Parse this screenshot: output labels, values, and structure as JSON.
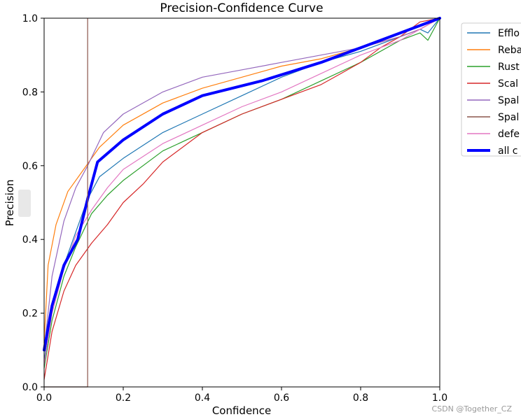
{
  "chart_data": {
    "type": "line",
    "title": "Precision-Confidence Curve",
    "xlabel": "Confidence",
    "ylabel": "Precision",
    "xlim": [
      0,
      1
    ],
    "ylim": [
      0,
      1
    ],
    "x_ticks": [
      "0.0",
      "0.2",
      "0.4",
      "0.6",
      "0.8",
      "1.0"
    ],
    "y_ticks": [
      "0.0",
      "0.2",
      "0.4",
      "0.6",
      "0.8",
      "1.0"
    ],
    "legend_position": "outside-top-right",
    "vertical_marker": {
      "x": 0.11,
      "color": "#8c564b"
    },
    "series": [
      {
        "name": "Efflo",
        "color": "#1f77b4",
        "width": 1.2,
        "points": [
          [
            0,
            0.07
          ],
          [
            0.02,
            0.22
          ],
          [
            0.05,
            0.33
          ],
          [
            0.08,
            0.42
          ],
          [
            0.11,
            0.51
          ],
          [
            0.14,
            0.57
          ],
          [
            0.2,
            0.62
          ],
          [
            0.3,
            0.69
          ],
          [
            0.4,
            0.74
          ],
          [
            0.5,
            0.79
          ],
          [
            0.6,
            0.84
          ],
          [
            0.7,
            0.88
          ],
          [
            0.8,
            0.91
          ],
          [
            0.9,
            0.95
          ],
          [
            0.95,
            0.97
          ],
          [
            0.97,
            0.96
          ],
          [
            1,
            1
          ]
        ]
      },
      {
        "name": "Reba",
        "color": "#ff7f0e",
        "width": 1.2,
        "points": [
          [
            0,
            0.12
          ],
          [
            0.01,
            0.33
          ],
          [
            0.03,
            0.44
          ],
          [
            0.06,
            0.53
          ],
          [
            0.1,
            0.59
          ],
          [
            0.14,
            0.65
          ],
          [
            0.2,
            0.71
          ],
          [
            0.3,
            0.77
          ],
          [
            0.4,
            0.81
          ],
          [
            0.5,
            0.84
          ],
          [
            0.6,
            0.87
          ],
          [
            0.7,
            0.89
          ],
          [
            0.8,
            0.92
          ],
          [
            0.9,
            0.95
          ],
          [
            0.95,
            0.97
          ],
          [
            1,
            1
          ]
        ]
      },
      {
        "name": "Rust",
        "color": "#2ca02c",
        "width": 1.2,
        "points": [
          [
            0,
            0.05
          ],
          [
            0.02,
            0.18
          ],
          [
            0.05,
            0.3
          ],
          [
            0.08,
            0.38
          ],
          [
            0.12,
            0.47
          ],
          [
            0.16,
            0.52
          ],
          [
            0.2,
            0.56
          ],
          [
            0.3,
            0.64
          ],
          [
            0.4,
            0.69
          ],
          [
            0.5,
            0.74
          ],
          [
            0.6,
            0.78
          ],
          [
            0.7,
            0.83
          ],
          [
            0.8,
            0.88
          ],
          [
            0.9,
            0.94
          ],
          [
            0.95,
            0.96
          ],
          [
            0.97,
            0.94
          ],
          [
            1,
            1
          ]
        ]
      },
      {
        "name": "Scal",
        "color": "#d62728",
        "width": 1.2,
        "points": [
          [
            0,
            0.02
          ],
          [
            0.02,
            0.15
          ],
          [
            0.05,
            0.26
          ],
          [
            0.08,
            0.33
          ],
          [
            0.12,
            0.39
          ],
          [
            0.16,
            0.44
          ],
          [
            0.2,
            0.5
          ],
          [
            0.25,
            0.55
          ],
          [
            0.3,
            0.61
          ],
          [
            0.4,
            0.69
          ],
          [
            0.5,
            0.74
          ],
          [
            0.6,
            0.78
          ],
          [
            0.7,
            0.82
          ],
          [
            0.75,
            0.85
          ],
          [
            0.8,
            0.88
          ],
          [
            0.85,
            0.92
          ],
          [
            0.9,
            0.95
          ],
          [
            0.95,
            0.99
          ],
          [
            1,
            1
          ]
        ]
      },
      {
        "name": "Spal",
        "color": "#9467bd",
        "width": 1.2,
        "points": [
          [
            0,
            0.1
          ],
          [
            0.02,
            0.3
          ],
          [
            0.05,
            0.45
          ],
          [
            0.08,
            0.54
          ],
          [
            0.11,
            0.6
          ],
          [
            0.15,
            0.69
          ],
          [
            0.2,
            0.74
          ],
          [
            0.3,
            0.8
          ],
          [
            0.4,
            0.84
          ],
          [
            0.5,
            0.86
          ],
          [
            0.6,
            0.88
          ],
          [
            0.7,
            0.9
          ],
          [
            0.8,
            0.92
          ],
          [
            0.9,
            0.95
          ],
          [
            0.95,
            0.97
          ],
          [
            1,
            1
          ]
        ]
      },
      {
        "name": "Spal",
        "color": "#8c564b",
        "width": 1.2,
        "points": [
          [
            0,
            0
          ],
          [
            0.11,
            0
          ]
        ]
      },
      {
        "name": "defe",
        "color": "#e377c2",
        "width": 1.2,
        "points": [
          [
            0,
            0.06
          ],
          [
            0.02,
            0.2
          ],
          [
            0.05,
            0.32
          ],
          [
            0.08,
            0.41
          ],
          [
            0.12,
            0.48
          ],
          [
            0.16,
            0.54
          ],
          [
            0.2,
            0.59
          ],
          [
            0.3,
            0.66
          ],
          [
            0.4,
            0.71
          ],
          [
            0.5,
            0.76
          ],
          [
            0.6,
            0.8
          ],
          [
            0.7,
            0.85
          ],
          [
            0.8,
            0.9
          ],
          [
            0.9,
            0.94
          ],
          [
            0.95,
            0.97
          ],
          [
            1,
            1
          ]
        ]
      },
      {
        "name": "all c",
        "color": "#0000ff",
        "width": 4,
        "points": [
          [
            0,
            0.1
          ],
          [
            0.02,
            0.22
          ],
          [
            0.05,
            0.33
          ],
          [
            0.085,
            0.4
          ],
          [
            0.11,
            0.51
          ],
          [
            0.135,
            0.61
          ],
          [
            0.2,
            0.67
          ],
          [
            0.3,
            0.74
          ],
          [
            0.4,
            0.79
          ],
          [
            0.55,
            0.83
          ],
          [
            0.7,
            0.88
          ],
          [
            0.8,
            0.92
          ],
          [
            0.9,
            0.96
          ],
          [
            1,
            1
          ]
        ]
      }
    ]
  },
  "watermark": "CSDN @Together_CZ"
}
